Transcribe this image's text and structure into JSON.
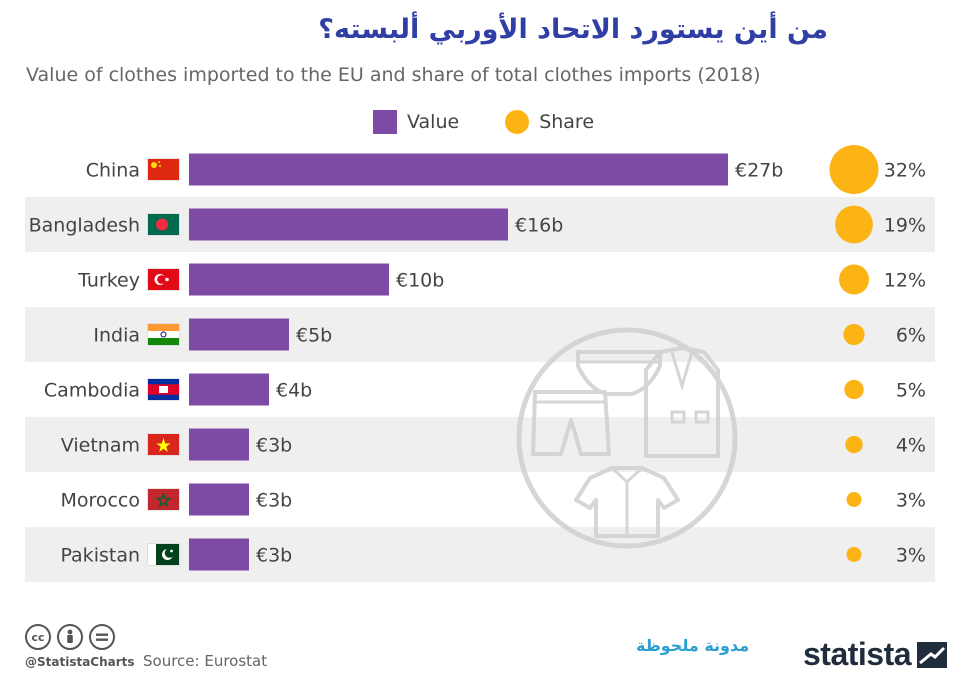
{
  "header": {
    "title": "من أين يستورد الاتحاد الأوربي ألبسته؟",
    "subtitle": "Value of clothes imported to the EU and share of total clothes imports (2018)"
  },
  "legend": {
    "value_label": "Value",
    "share_label": "Share"
  },
  "colors": {
    "bar": "#7d4ba5",
    "bubble": "#fbb414",
    "row_band": "#efefef",
    "title": "#2f3fa6"
  },
  "chart_data": {
    "type": "bar",
    "orientation": "horizontal",
    "categories": [
      "China",
      "Bangladesh",
      "Turkey",
      "India",
      "Cambodia",
      "Vietnam",
      "Morocco",
      "Pakistan"
    ],
    "series": [
      {
        "name": "Value",
        "values": [
          27,
          16,
          10,
          5,
          4,
          3,
          3,
          3
        ],
        "labels": [
          "€27b",
          "€16b",
          "€10b",
          "€5b",
          "€4b",
          "€3b",
          "€3b",
          "€3b"
        ]
      },
      {
        "name": "Share",
        "values": [
          32,
          19,
          12,
          6,
          5,
          4,
          3,
          3
        ],
        "labels": [
          "32%",
          "19%",
          "12%",
          "6%",
          "5%",
          "4%",
          "3%",
          "3%"
        ]
      }
    ],
    "flags": [
      "china-flag-icon",
      "bangladesh-flag-icon",
      "turkey-flag-icon",
      "india-flag-icon",
      "cambodia-flag-icon",
      "vietnam-flag-icon",
      "morocco-flag-icon",
      "pakistan-flag-icon"
    ],
    "banded_rows": true
  },
  "footer": {
    "handle": "@StatistaCharts",
    "source": "Source: Eurostat",
    "blog": "مدونة ملحوظة",
    "brand": "statista",
    "license_icons": [
      "cc-icon",
      "attribution-icon",
      "no-derivatives-icon"
    ]
  }
}
